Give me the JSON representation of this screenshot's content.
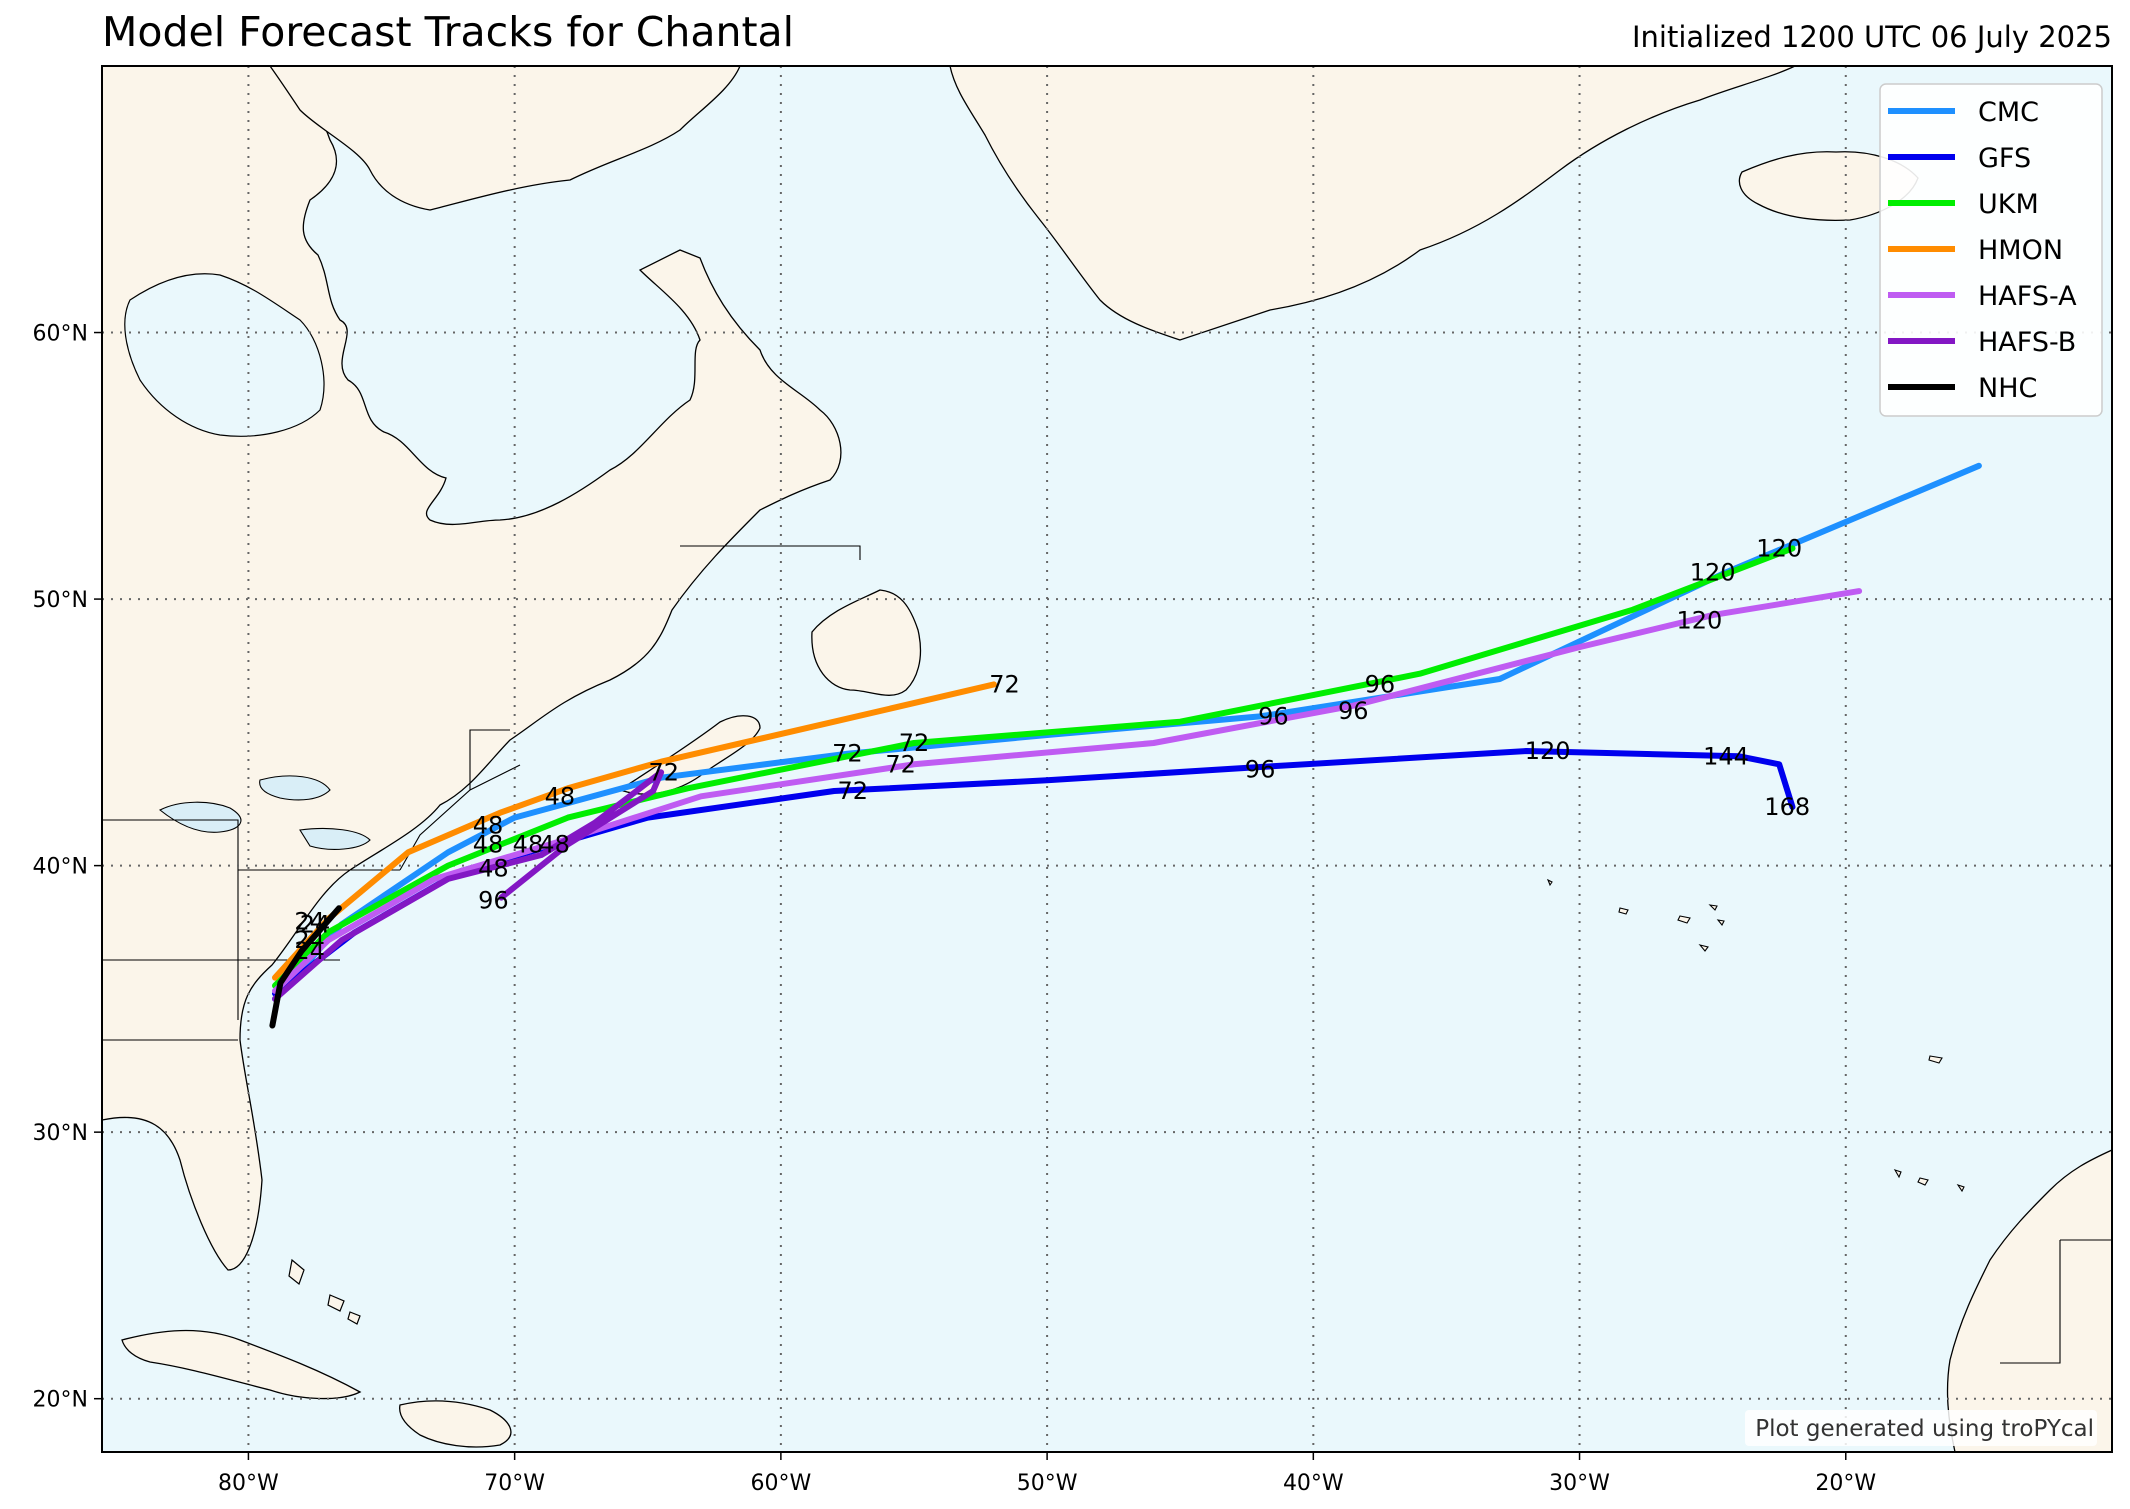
{
  "title": "Model Forecast Tracks for Chantal",
  "subtitle": "Initialized 1200 UTC 06 July 2025",
  "credit": "Plot generated using troPYcal",
  "colors": {
    "ocean": "#eaf8fc",
    "land": "#fbf5ea",
    "coast": "#000000",
    "grid": "#666666"
  },
  "map": {
    "lon_range": [
      -85.5,
      -10
    ],
    "lat_range": [
      18,
      70
    ],
    "lon_ticks": [
      {
        "value": -80,
        "label": "80°W"
      },
      {
        "value": -70,
        "label": "70°W"
      },
      {
        "value": -60,
        "label": "60°W"
      },
      {
        "value": -50,
        "label": "50°W"
      },
      {
        "value": -40,
        "label": "40°W"
      },
      {
        "value": -30,
        "label": "30°W"
      },
      {
        "value": -20,
        "label": "20°W"
      }
    ],
    "lat_ticks": [
      {
        "value": 20,
        "label": "20°N"
      },
      {
        "value": 30,
        "label": "30°N"
      },
      {
        "value": 40,
        "label": "40°N"
      },
      {
        "value": 50,
        "label": "50°N"
      },
      {
        "value": 60,
        "label": "60°N"
      }
    ],
    "grid": "dotted"
  },
  "legend": {
    "position": "top-right",
    "entries": [
      {
        "name": "CMC",
        "color": "#1e90ff"
      },
      {
        "name": "GFS",
        "color": "#0000ee"
      },
      {
        "name": "UKM",
        "color": "#00ee00"
      },
      {
        "name": "HMON",
        "color": "#ff8c00"
      },
      {
        "name": "HAFS-A",
        "color": "#bf5cf2"
      },
      {
        "name": "HAFS-B",
        "color": "#8317c4"
      },
      {
        "name": "NHC",
        "color": "#000000"
      }
    ]
  },
  "chart_data": {
    "type": "line",
    "x_unit": "longitude (degrees)",
    "y_unit": "latitude (degrees)",
    "series": [
      {
        "name": "CMC",
        "color": "#1e90ff",
        "points": [
          [
            -79.0,
            35.0
          ],
          [
            -76.5,
            37.8
          ],
          [
            -72.5,
            40.5
          ],
          [
            -70.0,
            41.8
          ],
          [
            -64.5,
            43.3
          ],
          [
            -57.5,
            44.2
          ],
          [
            -50.0,
            44.9
          ],
          [
            -42.0,
            45.6
          ],
          [
            -33.0,
            47.0
          ],
          [
            -24.5,
            51.0
          ],
          [
            -15.0,
            55.0
          ]
        ],
        "labels": [
          {
            "text": "48",
            "lon": -71.0,
            "lat": 41.5
          },
          {
            "text": "72",
            "lon": -57.5,
            "lat": 44.2
          },
          {
            "text": "96",
            "lon": -41.5,
            "lat": 45.6
          },
          {
            "text": "120",
            "lon": -25.0,
            "lat": 51.0
          }
        ]
      },
      {
        "name": "GFS",
        "color": "#0000ee",
        "points": [
          [
            -79.0,
            35.2
          ],
          [
            -76.0,
            37.5
          ],
          [
            -72.0,
            39.8
          ],
          [
            -69.5,
            40.5
          ],
          [
            -65.0,
            41.8
          ],
          [
            -58.0,
            42.8
          ],
          [
            -50.0,
            43.2
          ],
          [
            -42.0,
            43.7
          ],
          [
            -32.0,
            44.3
          ],
          [
            -24.0,
            44.1
          ],
          [
            -22.5,
            43.8
          ],
          [
            -22.0,
            42.2
          ]
        ],
        "labels": [
          {
            "text": "48",
            "lon": -68.5,
            "lat": 40.8
          },
          {
            "text": "72",
            "lon": -57.3,
            "lat": 42.8
          },
          {
            "text": "96",
            "lon": -42.0,
            "lat": 43.6
          },
          {
            "text": "120",
            "lon": -31.2,
            "lat": 44.3
          },
          {
            "text": "144",
            "lon": -24.5,
            "lat": 44.1
          },
          {
            "text": "168",
            "lon": -22.2,
            "lat": 42.2
          }
        ]
      },
      {
        "name": "UKM",
        "color": "#00ee00",
        "points": [
          [
            -79.0,
            35.5
          ],
          [
            -77.0,
            37.5
          ],
          [
            -72.5,
            40.0
          ],
          [
            -68.0,
            41.8
          ],
          [
            -63.5,
            42.9
          ],
          [
            -55.0,
            44.6
          ],
          [
            -45.0,
            45.4
          ],
          [
            -36.0,
            47.2
          ],
          [
            -28.0,
            49.6
          ],
          [
            -22.0,
            51.9
          ]
        ],
        "labels": [
          {
            "text": "48",
            "lon": -69.5,
            "lat": 40.8
          },
          {
            "text": "72",
            "lon": -55.0,
            "lat": 44.6
          },
          {
            "text": "96",
            "lon": -37.5,
            "lat": 46.8
          },
          {
            "text": "120",
            "lon": -22.5,
            "lat": 51.9
          }
        ]
      },
      {
        "name": "HMON",
        "color": "#ff8c00",
        "points": [
          [
            -79.0,
            35.8
          ],
          [
            -77.0,
            38.0
          ],
          [
            -74.0,
            40.5
          ],
          [
            -70.5,
            42.0
          ],
          [
            -68.0,
            42.9
          ],
          [
            -64.5,
            43.9
          ],
          [
            -58.0,
            45.4
          ],
          [
            -52.0,
            46.8
          ]
        ],
        "labels": [
          {
            "text": "24",
            "lon": -77.5,
            "lat": 37.8
          },
          {
            "text": "48",
            "lon": -68.3,
            "lat": 42.6
          },
          {
            "text": "72",
            "lon": -51.6,
            "lat": 46.8
          }
        ]
      },
      {
        "name": "HAFS-A",
        "color": "#bf5cf2",
        "points": [
          [
            -79.0,
            35.3
          ],
          [
            -77.0,
            37.2
          ],
          [
            -73.0,
            39.5
          ],
          [
            -68.0,
            41.0
          ],
          [
            -63.0,
            42.6
          ],
          [
            -55.0,
            43.8
          ],
          [
            -46.0,
            44.6
          ],
          [
            -38.5,
            46.0
          ],
          [
            -30.0,
            48.2
          ],
          [
            -25.0,
            49.4
          ],
          [
            -19.5,
            50.3
          ]
        ],
        "labels": [
          {
            "text": "48",
            "lon": -71.0,
            "lat": 40.8
          },
          {
            "text": "72",
            "lon": -55.5,
            "lat": 43.8
          },
          {
            "text": "96",
            "lon": -38.5,
            "lat": 45.8
          },
          {
            "text": "120",
            "lon": -25.5,
            "lat": 49.2
          }
        ]
      },
      {
        "name": "HAFS-B",
        "color": "#8317c4",
        "points": [
          [
            -79.0,
            35.0
          ],
          [
            -76.5,
            37.2
          ],
          [
            -72.5,
            39.5
          ],
          [
            -69.0,
            40.4
          ],
          [
            -67.0,
            41.6
          ],
          [
            -64.5,
            43.5
          ],
          [
            -64.8,
            42.8
          ],
          [
            -68.0,
            40.8
          ],
          [
            -70.5,
            38.8
          ]
        ],
        "labels": [
          {
            "text": "48",
            "lon": -70.8,
            "lat": 39.9
          },
          {
            "text": "72",
            "lon": -64.4,
            "lat": 43.5
          },
          {
            "text": "96",
            "lon": -70.8,
            "lat": 38.7
          }
        ]
      },
      {
        "name": "NHC",
        "color": "#000000",
        "points": [
          [
            -79.1,
            34.0
          ],
          [
            -78.8,
            35.6
          ],
          [
            -78.0,
            36.8
          ],
          [
            -76.6,
            38.4
          ]
        ],
        "labels": [
          {
            "text": "24",
            "lon": -77.7,
            "lat": 37.9
          },
          {
            "text": "24",
            "lon": -77.7,
            "lat": 37.2
          },
          {
            "text": "24",
            "lon": -77.7,
            "lat": 36.8
          }
        ]
      }
    ]
  }
}
